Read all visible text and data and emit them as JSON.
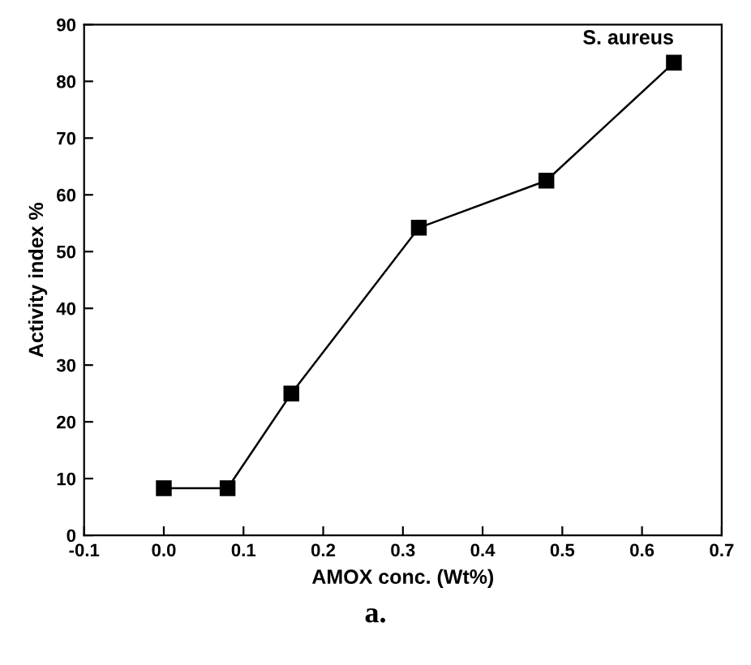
{
  "chart_data": {
    "type": "line",
    "xlabel": "AMOX conc. (Wt%)",
    "ylabel": "Activity index %",
    "series": [
      {
        "name": "S. aureus",
        "color": "#000000",
        "x": [
          0,
          0.08,
          0.16,
          0.32,
          0.48,
          0.64
        ],
        "values": [
          8.3,
          8.3,
          25,
          54.2,
          62.5,
          83.3
        ]
      }
    ],
    "xlim": [
      -0.1,
      0.7
    ],
    "xticks": [
      {
        "value": -0.1,
        "label": "-0.1"
      },
      {
        "value": 0,
        "label": "0.0"
      },
      0.1,
      0.2,
      0.3,
      0.4,
      0.5,
      0.6,
      0.7
    ],
    "ylim": [
      0,
      90
    ],
    "yticks": [
      0,
      10,
      20,
      30,
      40,
      50,
      60,
      70,
      80,
      90
    ],
    "marker": "square",
    "line_style": "solid",
    "grid": false,
    "legend": false,
    "annotations": [
      "a."
    ]
  }
}
